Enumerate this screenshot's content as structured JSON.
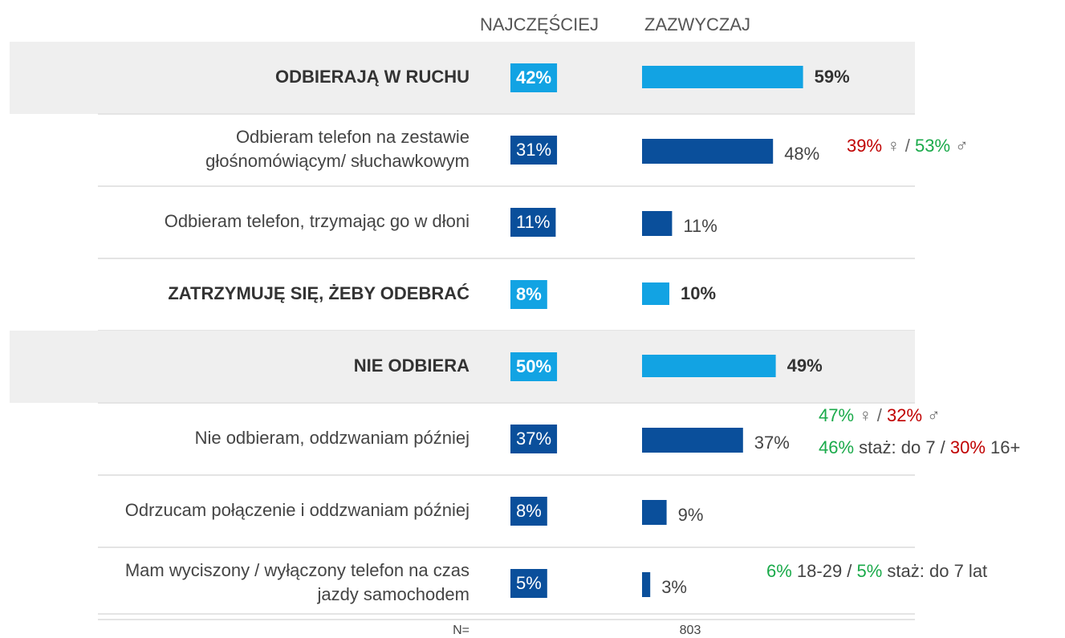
{
  "chart_data": {
    "type": "bar",
    "orientation": "horizontal",
    "categories": [
      [
        "ODBIERAJĄ W RUCHU"
      ],
      [
        "Odbieram telefon na zestawie",
        "głośnomówiącym/ słuchawkowym"
      ],
      [
        "Odbieram telefon, trzymając go w dłoni"
      ],
      [
        "ZATRZYMUJĘ SIĘ, ŻEBY ODEBRAĆ"
      ],
      [
        "NIE ODBIERA"
      ],
      [
        "Nie odbieram, oddzwaniam później"
      ],
      [
        "Odrzucam połączenie i oddzwaniam później"
      ],
      [
        "Mam wyciszony / wyłączony telefon na czas",
        "jazdy samochodem"
      ]
    ],
    "summary_rows": [
      true,
      false,
      false,
      true,
      true,
      false,
      false,
      false
    ],
    "shaded_rows": [
      true,
      false,
      false,
      false,
      true,
      false,
      false,
      false
    ],
    "summary_color": "#12a3e3",
    "detail_color": "#0a4f9b",
    "series": [
      {
        "name": "NAJCZĘŚCIEJ",
        "values": [
          42,
          31,
          11,
          8,
          50,
          37,
          8,
          5
        ],
        "value_labels": [
          "42%",
          "31%",
          "11%",
          "8%",
          "50%",
          "37%",
          "8%",
          "5%"
        ]
      },
      {
        "name": "ZAZWYCZAJ",
        "values": [
          59,
          48,
          11,
          10,
          49,
          37,
          9,
          3
        ],
        "value_labels": [
          "59%",
          "48%",
          "11%",
          "10%",
          "49%",
          "37%",
          "9%",
          "3%"
        ]
      }
    ],
    "annotations": [
      null,
      [
        [
          {
            "text": "39%",
            "color": "#c00000"
          },
          {
            "text": " ♀ / ",
            "color": "#666666"
          },
          {
            "text": "53%",
            "color": "#1aaa4a"
          },
          {
            "text": " ♂",
            "color": "#666666"
          }
        ]
      ],
      null,
      null,
      null,
      [
        [
          {
            "text": "47%",
            "color": "#1aaa4a"
          },
          {
            "text": " ♀ / ",
            "color": "#666666"
          },
          {
            "text": "32%",
            "color": "#c00000"
          },
          {
            "text": " ♂",
            "color": "#666666"
          }
        ],
        [
          {
            "text": "46%",
            "color": "#1aaa4a"
          },
          {
            "text": " staż: do 7 / ",
            "color": "#444444"
          },
          {
            "text": "30%",
            "color": "#c00000"
          },
          {
            "text": " 16+",
            "color": "#444444"
          }
        ]
      ],
      null,
      [
        [
          {
            "text": "6%",
            "color": "#1aaa4a"
          },
          {
            "text": " 18-29 / ",
            "color": "#444444"
          },
          {
            "text": "5%",
            "color": "#1aaa4a"
          },
          {
            "text": " staż: do 7 lat",
            "color": "#444444"
          }
        ]
      ]
    ],
    "footer": {
      "label": "N=",
      "value": 803
    }
  }
}
